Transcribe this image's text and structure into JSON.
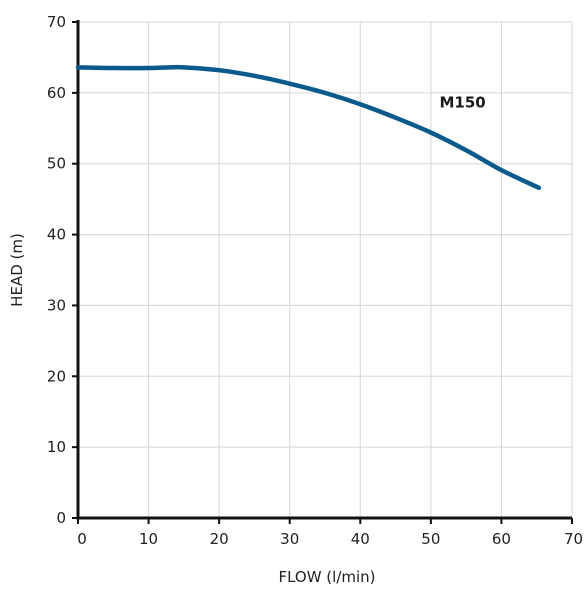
{
  "chart_data": {
    "type": "line",
    "title": "",
    "xlabel": "FLOW (l/min)",
    "ylabel": "HEAD (m)",
    "xlim": [
      0,
      70
    ],
    "ylim": [
      0,
      70
    ],
    "x_ticks": [
      "0",
      "10",
      "20",
      "30",
      "40",
      "50",
      "60",
      "70"
    ],
    "y_ticks": [
      "0",
      "10",
      "20",
      "30",
      "40",
      "50",
      "60",
      "70"
    ],
    "grid": true,
    "series": [
      {
        "name": "M150",
        "color": "#0b5a8e",
        "points": [
          [
            0,
            63.6
          ],
          [
            5,
            63.5
          ],
          [
            10,
            63.5
          ],
          [
            13,
            63.6
          ],
          [
            15,
            63.6
          ],
          [
            20,
            63.2
          ],
          [
            25,
            62.4
          ],
          [
            30,
            61.3
          ],
          [
            35,
            60.0
          ],
          [
            40,
            58.4
          ],
          [
            45,
            56.5
          ],
          [
            50,
            54.4
          ],
          [
            55,
            51.9
          ],
          [
            60,
            49.1
          ],
          [
            65.3,
            46.6
          ]
        ]
      }
    ]
  }
}
